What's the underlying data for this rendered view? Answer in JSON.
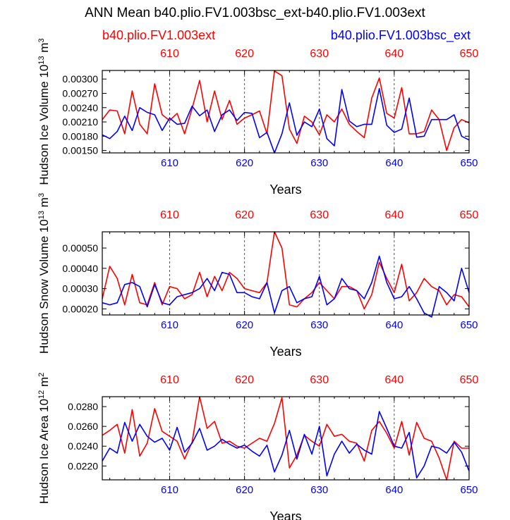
{
  "title": "ANN Mean b40.plio.FV1.003bsc_ext-b40.plio.FV1.003ext",
  "legend": {
    "left": {
      "label": "b40.plio.FV1.003ext",
      "color": "#ff0000"
    },
    "right": {
      "label": "b40.plio.FV1.003bsc_ext",
      "color": "#0000ff"
    }
  },
  "colors": {
    "series1": "#ff0000",
    "series2": "#0000ff",
    "axis": "#000000",
    "gridline": "#555555"
  },
  "chart_data": [
    {
      "type": "line",
      "xlabel": "Years",
      "ylabel_html": "Hudson Ice Volume 10<tspan baseline-shift='super' font-size='11'>13</tspan> m<tspan baseline-shift='super' font-size='11'>3</tspan>",
      "xlim": [
        601,
        650
      ],
      "ylim": [
        0.00145,
        0.00318
      ],
      "yticks": [
        0.0015,
        0.0018,
        0.0021,
        0.0024,
        0.0027,
        0.003
      ],
      "ytick_labels": [
        "0.00150",
        "0.00180",
        "0.00210",
        "0.00240",
        "0.00270",
        "0.00300"
      ],
      "xticks": [
        610,
        620,
        630,
        640,
        650
      ],
      "x": [
        601,
        602,
        603,
        604,
        605,
        606,
        607,
        608,
        609,
        610,
        611,
        612,
        613,
        614,
        615,
        616,
        617,
        618,
        619,
        620,
        621,
        622,
        623,
        624,
        625,
        626,
        627,
        628,
        629,
        630,
        631,
        632,
        633,
        634,
        635,
        636,
        637,
        638,
        639,
        640,
        641,
        642,
        643,
        644,
        645,
        646,
        647,
        648,
        649,
        650
      ],
      "series": [
        {
          "name": "b40.plio.FV1.003ext",
          "color": "#ff0000",
          "values": [
            0.00215,
            0.00235,
            0.00233,
            0.00185,
            0.00275,
            0.00205,
            0.00185,
            0.0029,
            0.00225,
            0.00213,
            0.00228,
            0.00185,
            0.00238,
            0.00297,
            0.0021,
            0.00275,
            0.00215,
            0.00255,
            0.00205,
            0.00218,
            0.00225,
            0.00233,
            0.00185,
            0.00317,
            0.00307,
            0.00195,
            0.00165,
            0.00222,
            0.0021,
            0.00183,
            0.00225,
            0.0021,
            0.00237,
            0.00205,
            0.0019,
            0.00177,
            0.0026,
            0.00302,
            0.00228,
            0.00218,
            0.00282,
            0.00185,
            0.00185,
            0.0019,
            0.00235,
            0.00215,
            0.0015,
            0.00198,
            0.00215,
            0.00208
          ]
        },
        {
          "name": "b40.plio.FV1.003bsc_ext",
          "color": "#0000ff",
          "values": [
            0.00183,
            0.00175,
            0.0019,
            0.00222,
            0.00192,
            0.0024,
            0.0023,
            0.00225,
            0.00192,
            0.00218,
            0.00205,
            0.00207,
            0.00243,
            0.00223,
            0.00235,
            0.0019,
            0.00225,
            0.00235,
            0.00213,
            0.0023,
            0.00228,
            0.00177,
            0.00188,
            0.00145,
            0.00185,
            0.0025,
            0.00182,
            0.0021,
            0.002,
            0.00237,
            0.00175,
            0.0016,
            0.00278,
            0.00212,
            0.002,
            0.00205,
            0.00205,
            0.0028,
            0.00203,
            0.00188,
            0.00195,
            0.0026,
            0.00178,
            0.0018,
            0.00215,
            0.00215,
            0.00215,
            0.00225,
            0.0018,
            0.00172
          ]
        }
      ]
    },
    {
      "type": "line",
      "xlabel": "Years",
      "ylabel_html": "Hudson Snow Volume 10<tspan baseline-shift='super' font-size='11'>13</tspan> m<tspan baseline-shift='super' font-size='11'>3</tspan>",
      "xlim": [
        601,
        650
      ],
      "ylim": [
        0.00017,
        0.00058
      ],
      "yticks": [
        0.0002,
        0.0003,
        0.0004,
        0.0005
      ],
      "ytick_labels": [
        "0.00020",
        "0.00030",
        "0.00040",
        "0.00050"
      ],
      "xticks": [
        610,
        620,
        630,
        640,
        650
      ],
      "x": [
        601,
        602,
        603,
        604,
        605,
        606,
        607,
        608,
        609,
        610,
        611,
        612,
        613,
        614,
        615,
        616,
        617,
        618,
        619,
        620,
        621,
        622,
        623,
        624,
        625,
        626,
        627,
        628,
        629,
        630,
        631,
        632,
        633,
        634,
        635,
        636,
        637,
        638,
        639,
        640,
        641,
        642,
        643,
        644,
        645,
        646,
        647,
        648,
        649,
        650
      ],
      "series": [
        {
          "name": "b40.plio.FV1.003ext",
          "color": "#ff0000",
          "values": [
            0.00025,
            0.00041,
            0.00035,
            0.00022,
            0.00037,
            0.00023,
            0.00022,
            0.00033,
            0.00022,
            0.00031,
            0.0003,
            0.00025,
            0.00027,
            0.00038,
            0.00026,
            0.00036,
            0.00029,
            0.00038,
            0.00035,
            0.0003,
            0.00029,
            0.00028,
            0.00033,
            0.00058,
            0.0005,
            0.00022,
            0.00021,
            0.00025,
            0.00028,
            0.00033,
            0.00029,
            0.00025,
            0.00031,
            0.00031,
            0.00029,
            0.0002,
            0.00027,
            0.00043,
            0.00035,
            0.00028,
            0.00042,
            0.00024,
            0.00028,
            0.00035,
            0.00031,
            0.00029,
            0.00022,
            0.00027,
            0.00026,
            0.00021
          ]
        },
        {
          "name": "b40.plio.FV1.003bsc_ext",
          "color": "#0000ff",
          "values": [
            0.00023,
            0.00022,
            0.00023,
            0.00032,
            0.00033,
            0.00031,
            0.00021,
            0.00032,
            0.00023,
            0.00022,
            0.00026,
            0.00027,
            0.00028,
            0.0003,
            0.00035,
            0.00029,
            0.00038,
            0.00037,
            0.00028,
            0.00028,
            0.00026,
            0.00025,
            0.00033,
            0.00018,
            0.00029,
            0.00031,
            0.00023,
            0.00025,
            0.00026,
            0.00036,
            0.00022,
            0.00025,
            0.00035,
            0.0003,
            0.00029,
            0.00025,
            0.00033,
            0.00046,
            0.00033,
            0.00025,
            0.00026,
            0.00031,
            0.00025,
            0.00018,
            0.00016,
            0.00031,
            0.00028,
            0.00024,
            0.0004,
            0.00028
          ]
        }
      ]
    },
    {
      "type": "line",
      "xlabel": "Years",
      "ylabel_html": "Hudson Ice Area 10<tspan baseline-shift='super' font-size='11'>12</tspan> m<tspan baseline-shift='super' font-size='11'>2</tspan>",
      "xlim": [
        601,
        650
      ],
      "ylim": [
        0.0206,
        0.029
      ],
      "yticks": [
        0.022,
        0.024,
        0.026,
        0.028
      ],
      "ytick_labels": [
        "0.0220",
        "0.0240",
        "0.0260",
        "0.0280"
      ],
      "xticks": [
        610,
        620,
        630,
        640,
        650
      ],
      "x": [
        601,
        602,
        603,
        604,
        605,
        606,
        607,
        608,
        609,
        610,
        611,
        612,
        613,
        614,
        615,
        616,
        617,
        618,
        619,
        620,
        621,
        622,
        623,
        624,
        625,
        626,
        627,
        628,
        629,
        630,
        631,
        632,
        633,
        634,
        635,
        636,
        637,
        638,
        639,
        640,
        641,
        642,
        643,
        644,
        645,
        646,
        647,
        648,
        649,
        650
      ],
      "series": [
        {
          "name": "b40.plio.FV1.003ext",
          "color": "#ff0000",
          "values": [
            0.0251,
            0.0256,
            0.0262,
            0.0233,
            0.0277,
            0.023,
            0.0243,
            0.0278,
            0.0255,
            0.025,
            0.0245,
            0.0227,
            0.0244,
            0.029,
            0.0258,
            0.0265,
            0.0243,
            0.0245,
            0.024,
            0.0238,
            0.0243,
            0.0248,
            0.0245,
            0.0263,
            0.0289,
            0.0218,
            0.0231,
            0.0251,
            0.0245,
            0.024,
            0.0262,
            0.025,
            0.0252,
            0.0245,
            0.0243,
            0.0225,
            0.0256,
            0.0265,
            0.0253,
            0.0238,
            0.0265,
            0.0231,
            0.0264,
            0.0248,
            0.0245,
            0.0228,
            0.0206,
            0.0245,
            0.0238,
            0.0238
          ]
        },
        {
          "name": "b40.plio.FV1.003bsc_ext",
          "color": "#0000ff",
          "values": [
            0.0225,
            0.0238,
            0.0233,
            0.0264,
            0.0245,
            0.0262,
            0.025,
            0.0244,
            0.0248,
            0.0236,
            0.0259,
            0.0234,
            0.0243,
            0.0258,
            0.0236,
            0.024,
            0.0247,
            0.0242,
            0.0238,
            0.0241,
            0.0235,
            0.023,
            0.0241,
            0.0214,
            0.0231,
            0.0256,
            0.0227,
            0.0252,
            0.0232,
            0.026,
            0.021,
            0.0232,
            0.0245,
            0.0233,
            0.0242,
            0.0236,
            0.0232,
            0.0275,
            0.0258,
            0.024,
            0.0238,
            0.0254,
            0.0208,
            0.022,
            0.024,
            0.0238,
            0.0233,
            0.0244,
            0.0234,
            0.0215
          ]
        }
      ]
    }
  ]
}
